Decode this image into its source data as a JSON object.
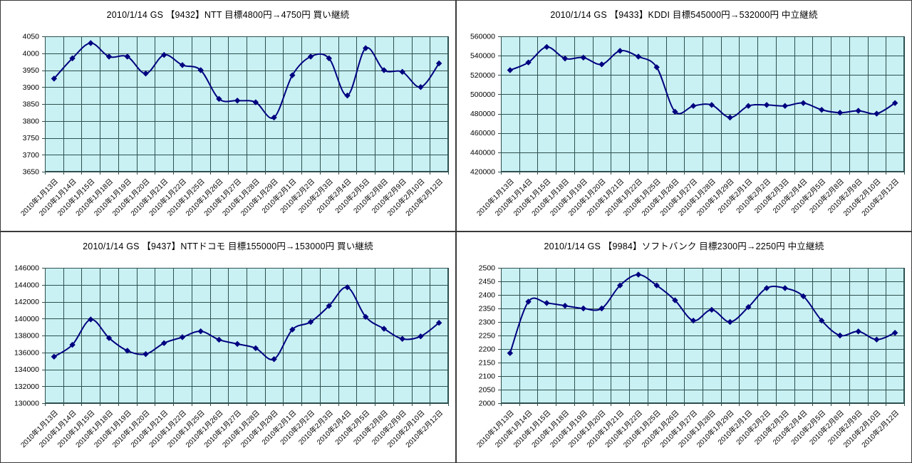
{
  "theme": {
    "page_bg": "#ffffff",
    "panel_border": "#3a3a3a",
    "plot_bg": "#c9f1f3",
    "grid_color": "#2e4f4f",
    "line_color": "#000080",
    "marker_color": "#000080",
    "text_color": "#000000"
  },
  "categories": [
    "2010年1月13日",
    "2010年1月14日",
    "2010年1月15日",
    "2010年1月18日",
    "2010年1月19日",
    "2010年1月20日",
    "2010年1月21日",
    "2010年1月22日",
    "2010年1月25日",
    "2010年1月26日",
    "2010年1月27日",
    "2010年1月28日",
    "2010年1月29日",
    "2010年2月1日",
    "2010年2月2日",
    "2010年2月3日",
    "2010年2月4日",
    "2010年2月5日",
    "2010年2月8日",
    "2010年2月9日",
    "2010年2月10日",
    "2010年2月12日"
  ],
  "chart_data": [
    {
      "type": "line",
      "title": "2010/1/14 GS 【9432】NTT 目標4800円→4750円 買い継続",
      "ylim": [
        3650,
        4050
      ],
      "ystep": 50,
      "yticks": [
        3650,
        3700,
        3750,
        3800,
        3850,
        3900,
        3950,
        4000,
        4050
      ],
      "legend": null,
      "grid": true,
      "smoothed": true,
      "categories": [
        "2010年1月13日",
        "2010年1月14日",
        "2010年1月15日",
        "2010年1月18日",
        "2010年1月19日",
        "2010年1月20日",
        "2010年1月21日",
        "2010年1月22日",
        "2010年1月25日",
        "2010年1月26日",
        "2010年1月27日",
        "2010年1月28日",
        "2010年1月29日",
        "2010年2月1日",
        "2010年2月2日",
        "2010年2月3日",
        "2010年2月4日",
        "2010年2月5日",
        "2010年2月8日",
        "2010年2月9日",
        "2010年2月10日",
        "2010年2月12日"
      ],
      "values": [
        3925,
        3985,
        4030,
        3990,
        3990,
        3940,
        3995,
        3965,
        3950,
        3865,
        3860,
        3855,
        3810,
        3935,
        3990,
        3985,
        3875,
        4015,
        3950,
        3945,
        3900,
        3970
      ]
    },
    {
      "type": "line",
      "title": "2010/1/14 GS 【9433】KDDI 目標545000円→532000円 中立継続",
      "ylim": [
        420000,
        560000
      ],
      "ystep": 20000,
      "yticks": [
        420000,
        440000,
        460000,
        480000,
        500000,
        520000,
        540000,
        560000
      ],
      "legend": null,
      "grid": true,
      "smoothed": true,
      "categories": [
        "2010年1月13日",
        "2010年1月14日",
        "2010年1月15日",
        "2010年1月18日",
        "2010年1月19日",
        "2010年1月20日",
        "2010年1月21日",
        "2010年1月22日",
        "2010年1月25日",
        "2010年1月26日",
        "2010年1月27日",
        "2010年1月28日",
        "2010年1月29日",
        "2010年2月1日",
        "2010年2月2日",
        "2010年2月3日",
        "2010年2月4日",
        "2010年2月5日",
        "2010年2月8日",
        "2010年2月9日",
        "2010年2月10日",
        "2010年2月12日"
      ],
      "values": [
        525000,
        533000,
        549000,
        537000,
        538000,
        531000,
        545000,
        539000,
        528000,
        482000,
        488000,
        489000,
        476000,
        488000,
        489000,
        488000,
        491000,
        484000,
        481000,
        483000,
        480000,
        491000
      ]
    },
    {
      "type": "line",
      "title": "2010/1/14 GS 【9437】NTTドコモ 目標155000円→153000円 買い継続",
      "ylim": [
        130000,
        146000
      ],
      "ystep": 2000,
      "yticks": [
        130000,
        132000,
        134000,
        136000,
        138000,
        140000,
        142000,
        144000,
        146000
      ],
      "legend": null,
      "grid": true,
      "smoothed": true,
      "categories": [
        "2010年1月13日",
        "2010年1月14日",
        "2010年1月15日",
        "2010年1月18日",
        "2010年1月19日",
        "2010年1月20日",
        "2010年1月21日",
        "2010年1月22日",
        "2010年1月25日",
        "2010年1月26日",
        "2010年1月27日",
        "2010年1月28日",
        "2010年1月29日",
        "2010年2月1日",
        "2010年2月2日",
        "2010年2月3日",
        "2010年2月4日",
        "2010年2月5日",
        "2010年2月8日",
        "2010年2月9日",
        "2010年2月10日",
        "2010年2月12日"
      ],
      "values": [
        135500,
        136900,
        139900,
        137700,
        136200,
        135800,
        137100,
        137800,
        138500,
        137500,
        137000,
        136500,
        135200,
        138700,
        139600,
        141500,
        143700,
        140200,
        138800,
        137600,
        137900,
        139500
      ]
    },
    {
      "type": "line",
      "title": "2010/1/14 GS 【9984】ソフトバンク 目標2300円→2250円 中立継続",
      "ylim": [
        2000,
        2500
      ],
      "ystep": 50,
      "yticks": [
        2000,
        2050,
        2100,
        2150,
        2200,
        2250,
        2300,
        2350,
        2400,
        2450,
        2500
      ],
      "legend": null,
      "grid": true,
      "smoothed": true,
      "categories": [
        "2010年1月13日",
        "2010年1月14日",
        "2010年1月15日",
        "2010年1月18日",
        "2010年1月19日",
        "2010年1月20日",
        "2010年1月21日",
        "2010年1月22日",
        "2010年1月25日",
        "2010年1月26日",
        "2010年1月27日",
        "2010年1月28日",
        "2010年1月29日",
        "2010年2月1日",
        "2010年2月2日",
        "2010年2月3日",
        "2010年2月4日",
        "2010年2月5日",
        "2010年2月8日",
        "2010年2月9日",
        "2010年2月10日",
        "2010年2月12日"
      ],
      "values": [
        2185,
        2375,
        2370,
        2360,
        2350,
        2350,
        2435,
        2475,
        2435,
        2380,
        2305,
        2345,
        2300,
        2355,
        2425,
        2425,
        2395,
        2305,
        2250,
        2265,
        2235,
        2260
      ]
    }
  ]
}
